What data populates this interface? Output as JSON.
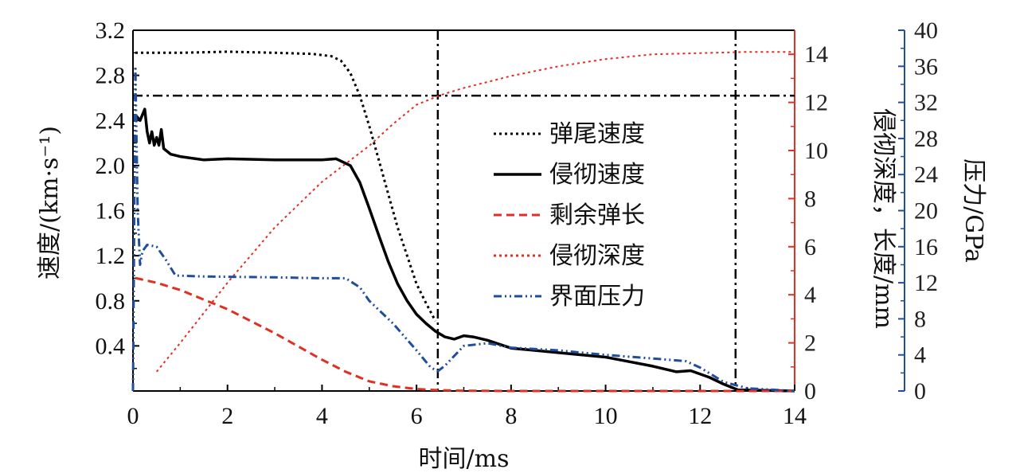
{
  "chart_data": {
    "type": "line",
    "xlabel": "时间/ms",
    "ylabel_left": "速度/(km·s⁻¹)",
    "ylabel_right_1": "侵彻深度，长度/mm",
    "ylabel_right_2": "压力/GPa",
    "xlim": [
      0,
      14
    ],
    "ylim_left": [
      0,
      3.2
    ],
    "ylim_right_1": [
      0,
      15
    ],
    "ylim_right_2": [
      0,
      40
    ],
    "x_ticks": [
      "0",
      "2",
      "4",
      "6",
      "8",
      "10",
      "12",
      "14"
    ],
    "y_left_ticks": [
      "0.4",
      "0.8",
      "1.2",
      "1.6",
      "2.0",
      "2.4",
      "2.8",
      "3.2"
    ],
    "y_right_1_ticks": [
      "0",
      "2",
      "4",
      "6",
      "8",
      "10",
      "12",
      "14"
    ],
    "y_right_2_ticks": [
      "0",
      "4",
      "8",
      "12",
      "16",
      "20",
      "24",
      "28",
      "32",
      "36",
      "40"
    ],
    "legend_position": "center-right",
    "colors": {
      "black": "#000000",
      "red": "#e03024",
      "blue": "#1f4e9c"
    },
    "series": [
      {
        "name": "弹尾速度",
        "axis": "left",
        "style": "dotted",
        "color": "#000000",
        "points": [
          [
            0.05,
            3.0
          ],
          [
            1,
            3.0
          ],
          [
            2,
            3.01
          ],
          [
            3,
            3.0
          ],
          [
            3.8,
            2.99
          ],
          [
            4.2,
            2.97
          ],
          [
            4.4,
            2.93
          ],
          [
            4.6,
            2.82
          ],
          [
            4.8,
            2.62
          ],
          [
            5.0,
            2.35
          ],
          [
            5.2,
            2.05
          ],
          [
            5.4,
            1.75
          ],
          [
            5.6,
            1.45
          ],
          [
            5.8,
            1.2
          ],
          [
            6.0,
            0.95
          ],
          [
            6.2,
            0.78
          ],
          [
            6.4,
            0.62
          ]
        ]
      },
      {
        "name": "侵彻速度",
        "axis": "left",
        "style": "solid",
        "color": "#000000",
        "points": [
          [
            0.05,
            2.45
          ],
          [
            0.15,
            2.4
          ],
          [
            0.25,
            2.5
          ],
          [
            0.3,
            2.3
          ],
          [
            0.35,
            2.2
          ],
          [
            0.4,
            2.3
          ],
          [
            0.45,
            2.18
          ],
          [
            0.5,
            2.25
          ],
          [
            0.55,
            2.18
          ],
          [
            0.6,
            2.32
          ],
          [
            0.65,
            2.15
          ],
          [
            0.8,
            2.1
          ],
          [
            1,
            2.08
          ],
          [
            1.5,
            2.05
          ],
          [
            2,
            2.06
          ],
          [
            3,
            2.05
          ],
          [
            4,
            2.05
          ],
          [
            4.3,
            2.06
          ],
          [
            4.6,
            2.0
          ],
          [
            4.8,
            1.85
          ],
          [
            5.0,
            1.62
          ],
          [
            5.2,
            1.38
          ],
          [
            5.4,
            1.15
          ],
          [
            5.6,
            0.95
          ],
          [
            5.8,
            0.8
          ],
          [
            6.0,
            0.68
          ],
          [
            6.2,
            0.6
          ],
          [
            6.4,
            0.53
          ],
          [
            6.6,
            0.48
          ],
          [
            6.8,
            0.46
          ],
          [
            7.0,
            0.49
          ],
          [
            7.2,
            0.48
          ],
          [
            7.5,
            0.45
          ],
          [
            8.0,
            0.38
          ],
          [
            8.5,
            0.36
          ],
          [
            9.0,
            0.34
          ],
          [
            10.0,
            0.3
          ],
          [
            10.5,
            0.26
          ],
          [
            11.0,
            0.22
          ],
          [
            11.5,
            0.17
          ],
          [
            11.8,
            0.18
          ],
          [
            12.2,
            0.12
          ],
          [
            12.5,
            0.06
          ],
          [
            12.8,
            0.01
          ],
          [
            14,
            0.0
          ]
        ]
      },
      {
        "name": "剩余弹长",
        "axis": "right1",
        "style": "dashed",
        "color": "#e03024",
        "points": [
          [
            0.05,
            4.7
          ],
          [
            0.5,
            4.5
          ],
          [
            1,
            4.2
          ],
          [
            2,
            3.4
          ],
          [
            3,
            2.4
          ],
          [
            4,
            1.3
          ],
          [
            4.5,
            0.8
          ],
          [
            5,
            0.4
          ],
          [
            5.5,
            0.2
          ],
          [
            6,
            0.08
          ],
          [
            6.5,
            0.03
          ],
          [
            7,
            0.01
          ],
          [
            8,
            0.0
          ],
          [
            14,
            0.0
          ]
        ]
      },
      {
        "name": "侵彻深度",
        "axis": "right1",
        "style": "dotted",
        "color": "#e03024",
        "points": [
          [
            0.5,
            0.8
          ],
          [
            1,
            2.0
          ],
          [
            2,
            4.5
          ],
          [
            3,
            6.8
          ],
          [
            4,
            8.7
          ],
          [
            5,
            10.2
          ],
          [
            5.5,
            11.1
          ],
          [
            6,
            11.9
          ],
          [
            6.5,
            12.3
          ],
          [
            7,
            12.6
          ],
          [
            8,
            13.1
          ],
          [
            9,
            13.5
          ],
          [
            10,
            13.8
          ],
          [
            11,
            14.0
          ],
          [
            12,
            14.05
          ],
          [
            13,
            14.1
          ],
          [
            14,
            14.1
          ]
        ]
      },
      {
        "name": "界面压力",
        "axis": "right2",
        "style": "dashdot",
        "color": "#1f4e9c",
        "points": [
          [
            0,
            0
          ],
          [
            0.05,
            36
          ],
          [
            0.1,
            20
          ],
          [
            0.15,
            14
          ],
          [
            0.2,
            15.5
          ],
          [
            0.3,
            16.2
          ],
          [
            0.5,
            16.0
          ],
          [
            0.7,
            14.5
          ],
          [
            0.9,
            12.8
          ],
          [
            1.5,
            12.7
          ],
          [
            3,
            12.6
          ],
          [
            4,
            12.5
          ],
          [
            4.5,
            12.5
          ],
          [
            4.8,
            11.5
          ],
          [
            5.0,
            10.0
          ],
          [
            5.5,
            7.5
          ],
          [
            6.0,
            4.5
          ],
          [
            6.3,
            2.6
          ],
          [
            6.45,
            2.2
          ],
          [
            6.6,
            2.8
          ],
          [
            7.0,
            5.0
          ],
          [
            7.5,
            5.3
          ],
          [
            8.0,
            4.8
          ],
          [
            9.0,
            4.5
          ],
          [
            10.0,
            4.0
          ],
          [
            11.0,
            3.6
          ],
          [
            11.7,
            3.3
          ],
          [
            12.0,
            2.6
          ],
          [
            12.5,
            1.0
          ],
          [
            13,
            0.3
          ],
          [
            14,
            0.0
          ]
        ]
      }
    ],
    "annotations": [
      {
        "kind": "vline",
        "x": 6.45,
        "style": "dashdot"
      },
      {
        "kind": "vline",
        "x": 12.75,
        "style": "dashdot"
      },
      {
        "kind": "hline_left",
        "y": 2.62,
        "style": "dashdot"
      }
    ]
  }
}
